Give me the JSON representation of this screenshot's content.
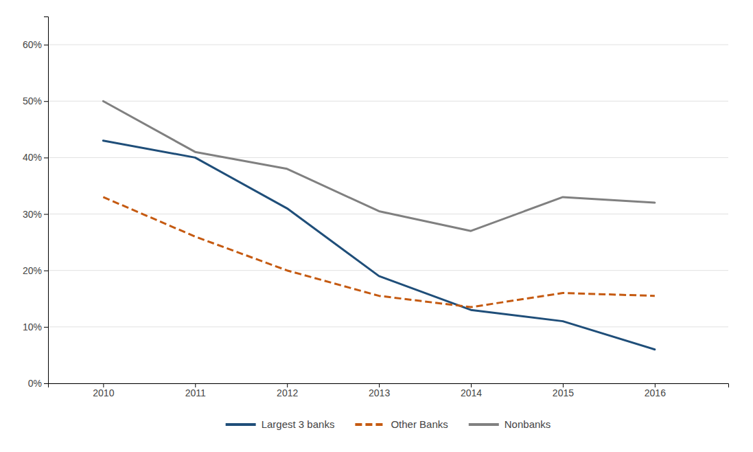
{
  "chart_data": {
    "type": "line",
    "x": [
      2010,
      2011,
      2012,
      2013,
      2014,
      2015,
      2016
    ],
    "xlim": [
      2009.4,
      2016.8
    ],
    "xticks": [
      2010,
      2011,
      2012,
      2013,
      2014,
      2015,
      2016
    ],
    "ylim": [
      0,
      0.65
    ],
    "yticks": [
      {
        "value": 0.0,
        "label": "0%"
      },
      {
        "value": 0.1,
        "label": "10%"
      },
      {
        "value": 0.2,
        "label": "20%"
      },
      {
        "value": 0.3,
        "label": "30%"
      },
      {
        "value": 0.4,
        "label": "40%"
      },
      {
        "value": 0.5,
        "label": "50%"
      },
      {
        "value": 0.6,
        "label": "60%"
      }
    ],
    "grid": true,
    "legend": "bottom",
    "series": [
      {
        "name": "Largest 3 banks",
        "color": "#1f4e79",
        "line_style": "solid",
        "values": [
          0.43,
          0.4,
          0.31,
          0.19,
          0.13,
          0.11,
          0.06
        ]
      },
      {
        "name": "Other Banks",
        "color": "#c55a11",
        "line_style": "dashed",
        "values": [
          0.33,
          0.26,
          0.2,
          0.155,
          0.135,
          0.16,
          0.155
        ]
      },
      {
        "name": "Nonbanks",
        "color": "#808080",
        "line_style": "solid",
        "values": [
          0.5,
          0.41,
          0.38,
          0.305,
          0.27,
          0.33,
          0.32
        ]
      }
    ]
  }
}
